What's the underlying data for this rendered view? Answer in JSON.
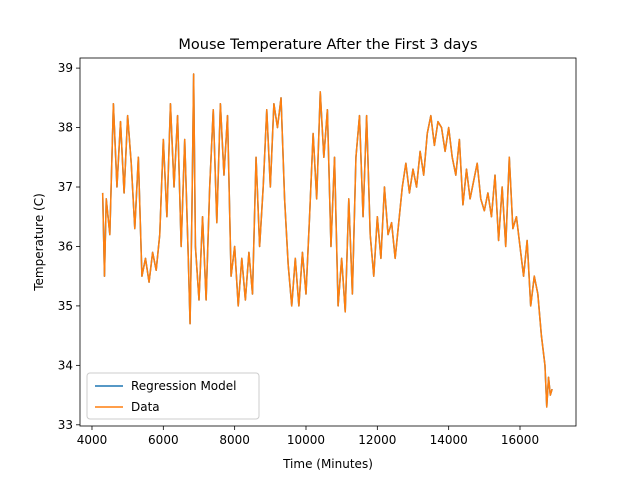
{
  "chart_data": {
    "type": "line",
    "title": "Mouse Temperature After the First 3 days",
    "x_label": "Time (Minutes)",
    "y_label": "Temperature (C)",
    "x": [
      4300,
      4350,
      4400,
      4500,
      4600,
      4700,
      4800,
      4900,
      5000,
      5100,
      5200,
      5300,
      5400,
      5500,
      5600,
      5700,
      5800,
      5900,
      6000,
      6100,
      6200,
      6300,
      6400,
      6500,
      6600,
      6700,
      6750,
      6800,
      6850,
      6900,
      7000,
      7100,
      7200,
      7300,
      7400,
      7500,
      7600,
      7700,
      7800,
      7900,
      8000,
      8100,
      8200,
      8300,
      8400,
      8500,
      8600,
      8700,
      8800,
      8900,
      9000,
      9100,
      9200,
      9300,
      9400,
      9500,
      9600,
      9700,
      9800,
      9900,
      10000,
      10100,
      10200,
      10300,
      10400,
      10500,
      10600,
      10700,
      10800,
      10900,
      11000,
      11100,
      11200,
      11300,
      11400,
      11500,
      11600,
      11700,
      11800,
      11900,
      12000,
      12100,
      12200,
      12300,
      12400,
      12500,
      12600,
      12700,
      12800,
      12900,
      13000,
      13100,
      13200,
      13300,
      13400,
      13500,
      13600,
      13700,
      13800,
      13900,
      14000,
      14100,
      14200,
      14300,
      14400,
      14500,
      14600,
      14700,
      14800,
      14900,
      15000,
      15100,
      15200,
      15300,
      15400,
      15500,
      15600,
      15700,
      15800,
      15900,
      16000,
      16100,
      16200,
      16300,
      16400,
      16500,
      16600,
      16700,
      16750,
      16800,
      16850,
      16900
    ],
    "series": [
      {
        "name": "Regression Model",
        "color": "#1f77b4",
        "values": [
          36.9,
          35.5,
          36.8,
          36.2,
          38.4,
          37.0,
          38.1,
          36.9,
          38.2,
          37.4,
          36.3,
          37.5,
          35.5,
          35.8,
          35.4,
          35.9,
          35.6,
          36.2,
          37.8,
          36.5,
          38.4,
          37.0,
          38.2,
          36.0,
          37.8,
          35.8,
          34.7,
          36.5,
          38.9,
          36.0,
          35.1,
          36.5,
          35.1,
          37.0,
          38.3,
          36.4,
          38.4,
          37.2,
          38.2,
          35.5,
          36.0,
          35.0,
          35.8,
          35.1,
          35.9,
          35.2,
          37.5,
          36.0,
          37.0,
          38.3,
          37.0,
          38.4,
          38.0,
          38.5,
          36.8,
          35.7,
          35.0,
          35.8,
          35.0,
          35.9,
          35.2,
          36.5,
          37.9,
          36.8,
          38.6,
          37.5,
          38.3,
          36.0,
          37.5,
          35.0,
          35.8,
          34.9,
          36.8,
          35.2,
          37.5,
          38.2,
          36.5,
          38.2,
          36.2,
          35.5,
          36.5,
          35.8,
          37.0,
          36.2,
          36.4,
          35.8,
          36.4,
          37.0,
          37.4,
          36.9,
          37.3,
          37.0,
          37.6,
          37.2,
          37.9,
          38.2,
          37.7,
          38.1,
          38.0,
          37.6,
          38.0,
          37.5,
          37.2,
          37.8,
          36.7,
          37.3,
          36.8,
          37.1,
          37.4,
          36.8,
          36.6,
          36.9,
          36.5,
          37.2,
          36.1,
          37.0,
          36.0,
          37.5,
          36.3,
          36.5,
          36.0,
          35.5,
          36.1,
          35.0,
          35.5,
          35.2,
          34.5,
          34.0,
          33.3,
          33.8,
          33.5,
          33.6
        ]
      },
      {
        "name": "Data",
        "color": "#ff7f0e",
        "values": [
          36.9,
          35.5,
          36.8,
          36.2,
          38.4,
          37.0,
          38.1,
          36.9,
          38.2,
          37.4,
          36.3,
          37.5,
          35.5,
          35.8,
          35.4,
          35.9,
          35.6,
          36.2,
          37.8,
          36.5,
          38.4,
          37.0,
          38.2,
          36.0,
          37.8,
          35.8,
          34.7,
          36.5,
          38.9,
          36.0,
          35.1,
          36.5,
          35.1,
          37.0,
          38.3,
          36.4,
          38.4,
          37.2,
          38.2,
          35.5,
          36.0,
          35.0,
          35.8,
          35.1,
          35.9,
          35.2,
          37.5,
          36.0,
          37.0,
          38.3,
          37.0,
          38.4,
          38.0,
          38.5,
          36.8,
          35.7,
          35.0,
          35.8,
          35.0,
          35.9,
          35.2,
          36.5,
          37.9,
          36.8,
          38.6,
          37.5,
          38.3,
          36.0,
          37.5,
          35.0,
          35.8,
          34.9,
          36.8,
          35.2,
          37.5,
          38.2,
          36.5,
          38.2,
          36.2,
          35.5,
          36.5,
          35.8,
          37.0,
          36.2,
          36.4,
          35.8,
          36.4,
          37.0,
          37.4,
          36.9,
          37.3,
          37.0,
          37.6,
          37.2,
          37.9,
          38.2,
          37.7,
          38.1,
          38.0,
          37.6,
          38.0,
          37.5,
          37.2,
          37.8,
          36.7,
          37.3,
          36.8,
          37.1,
          37.4,
          36.8,
          36.6,
          36.9,
          36.5,
          37.2,
          36.1,
          37.0,
          36.0,
          37.5,
          36.3,
          36.5,
          36.0,
          35.5,
          36.1,
          35.0,
          35.5,
          35.2,
          34.5,
          34.0,
          33.3,
          33.8,
          33.5,
          33.6
        ]
      }
    ],
    "xlim": [
      3664,
      17570
    ],
    "ylim": [
      32.98,
      39.17
    ],
    "xticks": [
      4000,
      6000,
      8000,
      10000,
      12000,
      14000,
      16000
    ],
    "yticks": [
      33,
      34,
      35,
      36,
      37,
      38,
      39
    ],
    "legend": "lower left"
  }
}
